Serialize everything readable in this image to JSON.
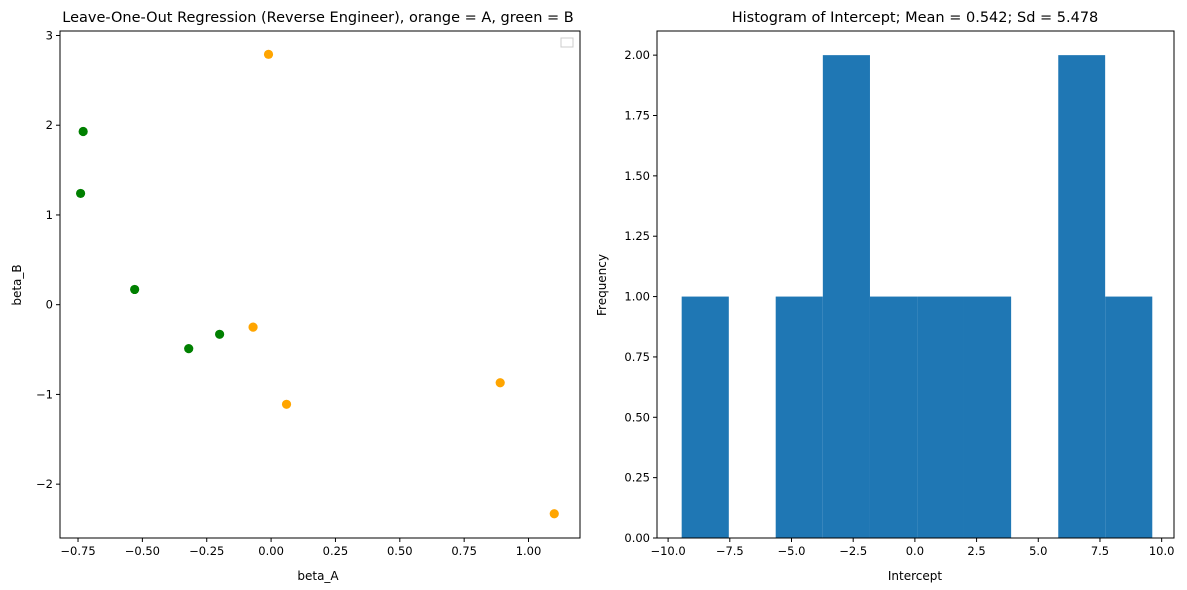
{
  "chart_data": [
    {
      "type": "scatter",
      "title": "Leave-One-Out Regression (Reverse Engineer), orange = A, green = B",
      "xlabel": "beta_A",
      "ylabel": "beta_B",
      "xlim": [
        -0.82,
        1.2
      ],
      "ylim": [
        -2.6,
        3.05
      ],
      "xticks": [
        -0.75,
        -0.5,
        -0.25,
        0.0,
        0.25,
        0.5,
        0.75,
        1.0
      ],
      "yticks": [
        -2,
        -1,
        0,
        1,
        2,
        3
      ],
      "xticklabels": [
        "−0.75",
        "−0.50",
        "−0.25",
        "0.00",
        "0.25",
        "0.50",
        "0.75",
        "1.00"
      ],
      "yticklabels": [
        "−2",
        "−1",
        "0",
        "1",
        "2",
        "3"
      ],
      "grid": false,
      "legend": {
        "placement": "upper right",
        "entries": []
      },
      "colors": {
        "A": "#ffa500",
        "B": "#008000"
      },
      "points": [
        {
          "x": -0.01,
          "y": 2.79,
          "color": "#ffa500"
        },
        {
          "x": -0.07,
          "y": -0.25,
          "color": "#ffa500"
        },
        {
          "x": 0.06,
          "y": -1.11,
          "color": "#ffa500"
        },
        {
          "x": 0.89,
          "y": -0.87,
          "color": "#ffa500"
        },
        {
          "x": 1.1,
          "y": -2.33,
          "color": "#ffa500"
        },
        {
          "x": -0.73,
          "y": 1.93,
          "color": "#008000"
        },
        {
          "x": -0.74,
          "y": 1.24,
          "color": "#008000"
        },
        {
          "x": -0.53,
          "y": 0.17,
          "color": "#008000"
        },
        {
          "x": -0.32,
          "y": -0.49,
          "color": "#008000"
        },
        {
          "x": -0.2,
          "y": -0.33,
          "color": "#008000"
        }
      ]
    },
    {
      "type": "bar",
      "title": "Histogram of Intercept; Mean = 0.542; Sd = 5.478",
      "xlabel": "Intercept",
      "ylabel": "Frequency",
      "xlim": [
        -10.45,
        10.5
      ],
      "ylim": [
        0,
        2.1
      ],
      "xticks": [
        -10,
        -7.5,
        -5,
        -2.5,
        0,
        2.5,
        5,
        7.5,
        10
      ],
      "yticks": [
        0,
        0.25,
        0.5,
        0.75,
        1.0,
        1.25,
        1.5,
        1.75,
        2.0
      ],
      "xticklabels": [
        "−10.0",
        "−7.5",
        "−5.0",
        "−2.5",
        "0.0",
        "2.5",
        "5.0",
        "7.5",
        "10.0"
      ],
      "yticklabels": [
        "0.00",
        "0.25",
        "0.50",
        "0.75",
        "1.00",
        "1.25",
        "1.50",
        "1.75",
        "2.00"
      ],
      "grid": false,
      "bar_color": "#1f77b4",
      "bin_edges": [
        -9.45,
        -7.54,
        -5.64,
        -3.73,
        -1.82,
        0.09,
        1.99,
        3.9,
        5.81,
        7.71,
        9.62
      ],
      "counts": [
        1,
        0,
        1,
        2,
        1,
        1,
        1,
        0,
        2,
        1
      ]
    }
  ]
}
